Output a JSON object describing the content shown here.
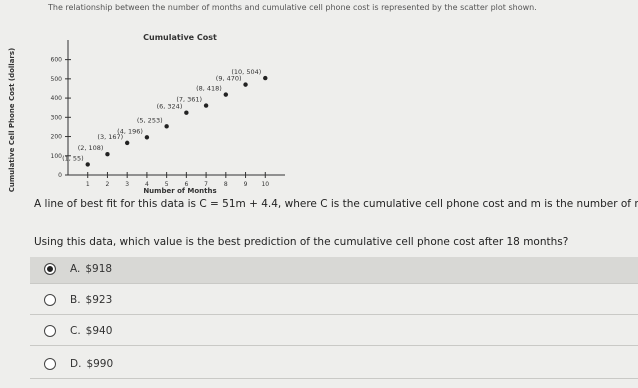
{
  "intro": "The relationship between the number of months and cumulative cell phone cost is represented by the scatter plot shown.",
  "chart_data": {
    "type": "scatter",
    "title": "Cumulative Cost",
    "x_label": "Number of Months",
    "y_label": "Cumulative Cell Phone Cost (dollars)",
    "x": [
      1,
      2,
      3,
      4,
      5,
      6,
      7,
      8,
      9,
      10
    ],
    "values": [
      55,
      108,
      167,
      196,
      253,
      324,
      361,
      418,
      470,
      504
    ],
    "value_labels": [
      "(1, 55)",
      "(2, 108)",
      "(3, 167)",
      "(4, 196)",
      "(5, 253)",
      "(6, 324)",
      "(7, 361)",
      "(8, 418)",
      "(9, 470)",
      "(10, 504)"
    ],
    "color": "#222",
    "xlim": [
      0,
      11
    ],
    "ylim": [
      0,
      650
    ],
    "xticks": [
      1,
      2,
      3,
      4,
      5,
      6,
      7,
      8,
      9,
      10
    ],
    "yticks": [
      0,
      100,
      200,
      300,
      400,
      500,
      600
    ]
  },
  "fit_text": "A line of best fit for this data is C = 51m + 4.4, where C is the cumulative cell phone cost and m is the number of months.",
  "question": "Using this data, which value is the best prediction of the cumulative cell phone cost after 18 months?",
  "choices": [
    {
      "letter": "A.",
      "text": "$918",
      "selected": true
    },
    {
      "letter": "B.",
      "text": "$923",
      "selected": false
    },
    {
      "letter": "C.",
      "text": "$940",
      "selected": false
    },
    {
      "letter": "D.",
      "text": "$990",
      "selected": false
    }
  ]
}
